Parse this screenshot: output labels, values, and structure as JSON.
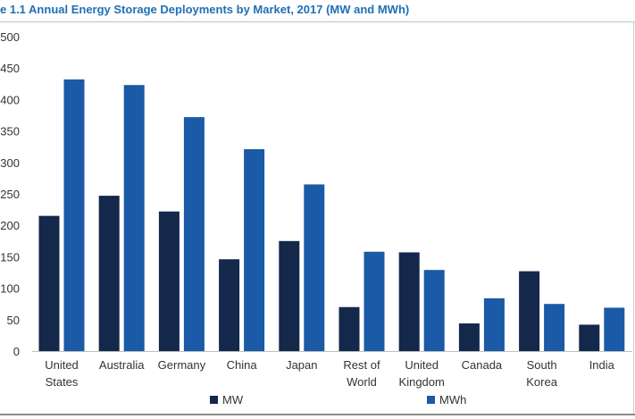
{
  "title": "e 1.1 Annual Energy Storage Deployments by Market, 2017  (MW and MWh)",
  "colors": {
    "title": "#1f6fb4",
    "MW": "#14284b",
    "MWh": "#1a5aa6"
  },
  "chart_data": {
    "type": "bar",
    "title": "e 1.1 Annual Energy Storage Deployments by Market, 2017  (MW and MWh)",
    "categories": [
      [
        "United",
        "States"
      ],
      [
        "Australia"
      ],
      [
        "Germany"
      ],
      [
        "China"
      ],
      [
        "Japan"
      ],
      [
        "Rest of",
        "World"
      ],
      [
        "United",
        "Kingdom"
      ],
      [
        "Canada"
      ],
      [
        "South",
        "Korea"
      ],
      [
        "India"
      ]
    ],
    "series": [
      {
        "name": "MW",
        "color": "#14284b",
        "values": [
          215,
          247,
          222,
          146,
          175,
          70,
          157,
          44,
          127,
          42
        ]
      },
      {
        "name": "MWh",
        "color": "#1a5aa6",
        "values": [
          432,
          423,
          372,
          321,
          265,
          158,
          129,
          84,
          75,
          69
        ]
      }
    ],
    "yticks": [
      "500",
      "450",
      "400",
      "350",
      "300",
      "250",
      "200",
      "150",
      "100",
      "50",
      "0"
    ],
    "ylim": [
      0,
      500
    ],
    "xlabel": "",
    "ylabel": "",
    "grid": false,
    "legend": "bottom-center"
  }
}
